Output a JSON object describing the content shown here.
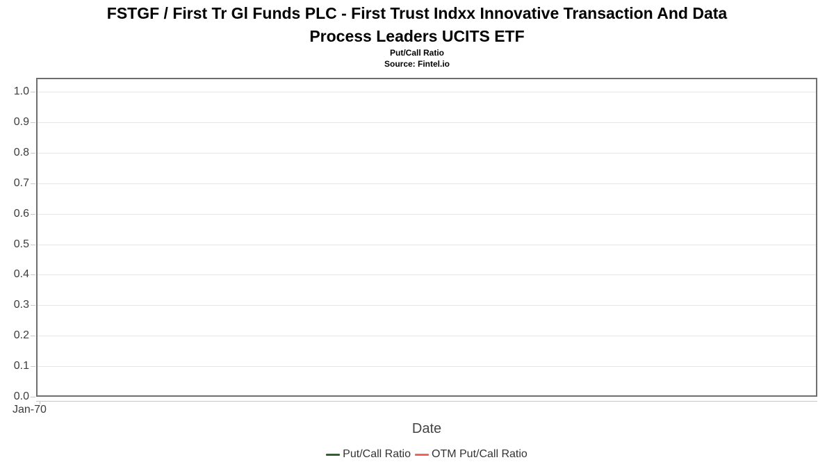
{
  "chart_data": {
    "type": "line",
    "title": "FSTGF / First Tr Gl Funds PLC - First Trust Indxx Innovative Transaction And Data Process Leaders UCITS ETF",
    "title_lines": [
      "FSTGF / First Tr Gl Funds PLC - First Trust Indxx Innovative Transaction And Data",
      "Process Leaders UCITS ETF"
    ],
    "subtitle": "Put/Call Ratio",
    "source_label": "Source: Fintel.io",
    "xlabel": "Date",
    "ylabel": "",
    "ylim": [
      0.0,
      1.0
    ],
    "ytick_labels": [
      "1.0",
      "0.9",
      "0.8",
      "0.7",
      "0.6",
      "0.5",
      "0.4",
      "0.3",
      "0.2",
      "0.1",
      "0.0"
    ],
    "xticks": [
      "Jan-70"
    ],
    "grid": true,
    "legend_position": "bottom",
    "axis_colors": {
      "border": "#6e6e6e",
      "gridline": "#e6e6e6",
      "tick": "#c9c9c9",
      "tick_text": "#3c3c3c"
    },
    "series": [
      {
        "name": "Put/Call Ratio",
        "color": "#2d642d",
        "x": [],
        "values": []
      },
      {
        "name": "OTM Put/Call Ratio",
        "color": "#f9605a",
        "x": [],
        "values": []
      }
    ]
  }
}
